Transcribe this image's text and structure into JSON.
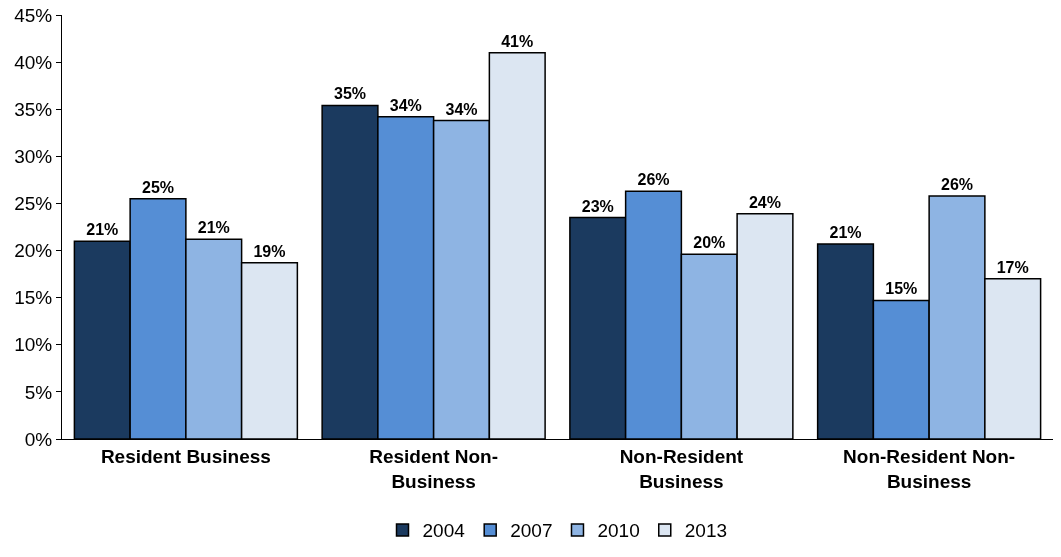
{
  "chart_data": {
    "type": "bar",
    "categories": [
      "Resident Business",
      "Resident Non-Business",
      "Non-Resident Business",
      "Non-Resident Non-Business"
    ],
    "series": [
      {
        "name": "2004",
        "color": "#1b3a5f",
        "values": [
          21.0,
          35.4,
          23.5,
          20.7
        ],
        "value_labels": [
          "21%",
          "35%",
          "23%",
          "21%"
        ]
      },
      {
        "name": "2007",
        "color": "#558ed5",
        "values": [
          25.5,
          34.2,
          26.3,
          14.7
        ],
        "value_labels": [
          "25%",
          "34%",
          "26%",
          "15%"
        ]
      },
      {
        "name": "2010",
        "color": "#8eb4e3",
        "values": [
          21.2,
          33.8,
          19.6,
          25.8
        ],
        "value_labels": [
          "21%",
          "34%",
          "20%",
          "26%"
        ]
      },
      {
        "name": "2013",
        "color": "#dce6f2",
        "values": [
          18.7,
          41.0,
          23.9,
          17.0
        ],
        "value_labels": [
          "19%",
          "41%",
          "24%",
          "17%"
        ]
      }
    ],
    "ylim": [
      0,
      45
    ],
    "yticks": [
      {
        "value": 0,
        "label": "0%"
      },
      {
        "value": 5,
        "label": "5%"
      },
      {
        "value": 10,
        "label": "10%"
      },
      {
        "value": 15,
        "label": "15%"
      },
      {
        "value": 20,
        "label": "20%"
      },
      {
        "value": 25,
        "label": "25%"
      },
      {
        "value": 30,
        "label": "30%"
      },
      {
        "value": 35,
        "label": "35%"
      },
      {
        "value": 40,
        "label": "40%"
      },
      {
        "value": 45,
        "label": "45%"
      }
    ],
    "grid": false,
    "legend": "bottom"
  }
}
